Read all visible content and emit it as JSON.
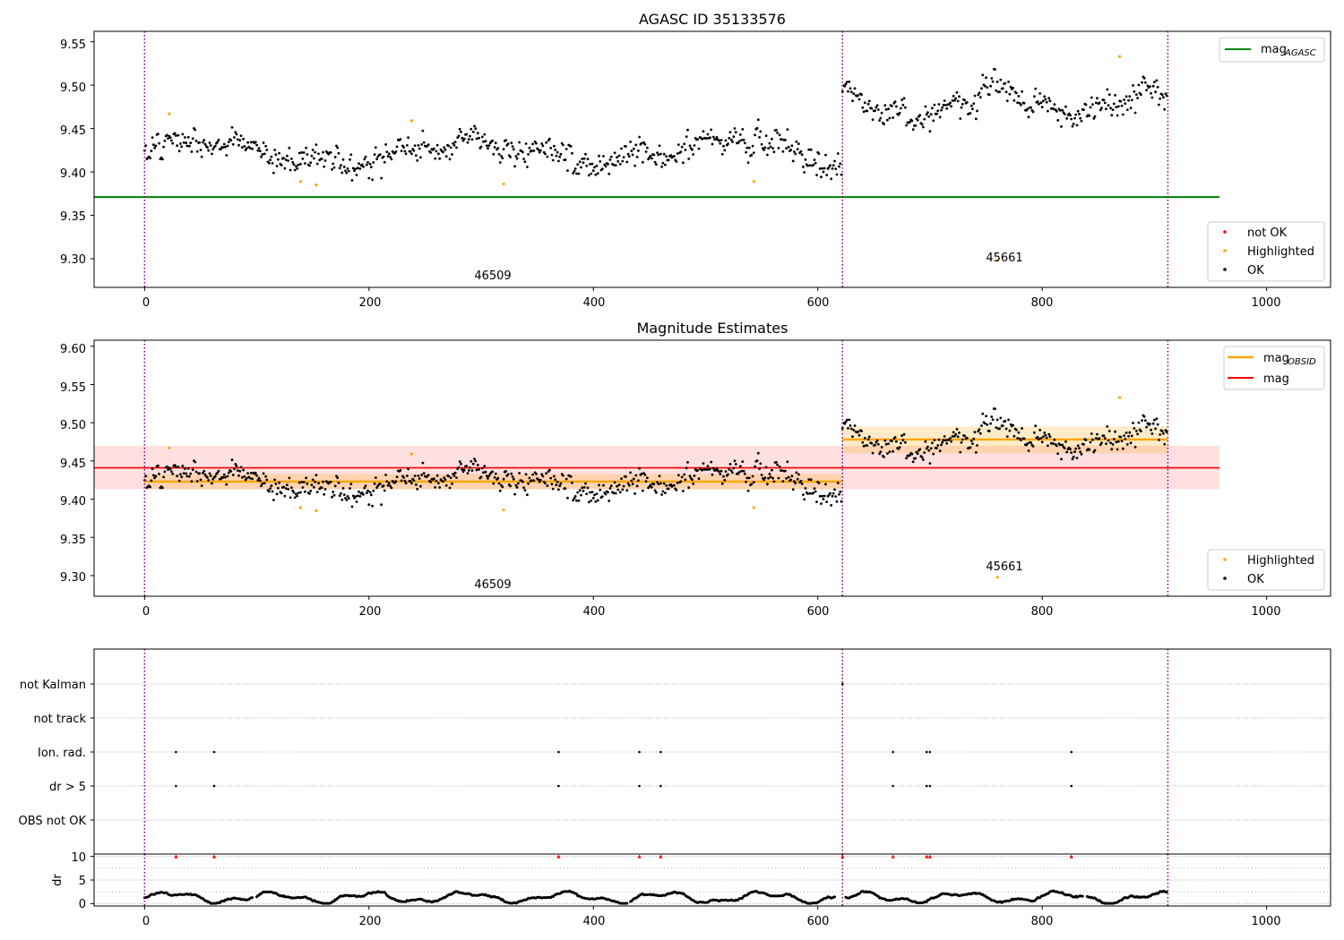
{
  "colors": {
    "ok": "#000000",
    "highlighted": "#ffa500",
    "not_ok": "#ff0000",
    "mag_agasc": "#008000",
    "mag_obsid": "#ffa500",
    "mag": "#ff0000",
    "obs_boundary": "#800080",
    "grid": "#b0b0b0"
  },
  "chart_data": [
    {
      "type": "scatter",
      "title": "AGASC ID 35133576",
      "xlabel": "",
      "ylabel": "",
      "xlim": [
        -45,
        1057
      ],
      "ylim": [
        9.267,
        9.562
      ],
      "xticks": [
        "0",
        "200",
        "400",
        "600",
        "800",
        "1000"
      ],
      "yticks": [
        "9.30",
        "9.35",
        "9.40",
        "9.45",
        "9.50",
        "9.55"
      ],
      "grid": false,
      "obs_boundaries": [
        0,
        622,
        912
      ],
      "obs_labels": [
        {
          "text": "46509",
          "x": 310,
          "y": 9.277
        },
        {
          "text": "45661",
          "x": 766,
          "y": 9.298
        }
      ],
      "reference_lines": [
        {
          "name": "mag_AGASC",
          "y": 9.371,
          "x_range": [
            -45,
            958
          ]
        }
      ],
      "series": [
        {
          "name": "OK",
          "generated": "ok_points"
        },
        {
          "name": "Highlighted",
          "x": [
            22,
            139,
            153,
            238,
            320,
            543,
            760,
            869
          ],
          "y": [
            9.467,
            9.389,
            9.385,
            9.459,
            9.386,
            9.389,
            9.298,
            9.533
          ]
        },
        {
          "name": "not OK",
          "x": [],
          "y": []
        }
      ],
      "legends": [
        {
          "position": "upper-right",
          "entries": [
            {
              "label": "mag",
              "sub": "AGASC",
              "kind": "line",
              "color": "#008000"
            }
          ]
        },
        {
          "position": "lower-right",
          "entries": [
            {
              "label": "not OK",
              "kind": "dot",
              "color": "#ff0000"
            },
            {
              "label": "Highlighted",
              "kind": "dot",
              "color": "#ffa500"
            },
            {
              "label": "OK",
              "kind": "dot",
              "color": "#000000"
            }
          ]
        }
      ]
    },
    {
      "type": "scatter",
      "title": "Magnitude Estimates",
      "xlabel": "",
      "ylabel": "",
      "xlim": [
        -45,
        1057
      ],
      "ylim": [
        9.273,
        9.608
      ],
      "xticks": [
        "0",
        "200",
        "400",
        "600",
        "800",
        "1000"
      ],
      "yticks": [
        "9.30",
        "9.35",
        "9.40",
        "9.45",
        "9.50",
        "9.55",
        "9.60"
      ],
      "grid": false,
      "obs_boundaries": [
        0,
        622,
        912
      ],
      "obs_labels": [
        {
          "text": "46509",
          "x": 310,
          "y": 9.283
        },
        {
          "text": "45661",
          "x": 766,
          "y": 9.307
        }
      ],
      "bands": [
        {
          "name": "mag",
          "y": 9.441,
          "y_low": 9.413,
          "y_high": 9.47,
          "x_range": [
            -45,
            958
          ],
          "color": "#ff0000"
        },
        {
          "name": "mag_OBSID 46509",
          "y": 9.423,
          "y_low": 9.413,
          "y_high": 9.433,
          "x_range": [
            0,
            622
          ],
          "color": "#ffa500"
        },
        {
          "name": "mag_OBSID 45661",
          "y": 9.478,
          "y_low": 9.46,
          "y_high": 9.495,
          "x_range": [
            622,
            912
          ],
          "color": "#ffa500"
        }
      ],
      "series": [
        {
          "name": "OK",
          "generated": "ok_points"
        },
        {
          "name": "Highlighted",
          "x": [
            22,
            139,
            153,
            238,
            320,
            543,
            760,
            869
          ],
          "y": [
            9.467,
            9.389,
            9.385,
            9.459,
            9.386,
            9.389,
            9.298,
            9.533
          ]
        }
      ],
      "legends": [
        {
          "position": "upper-right",
          "entries": [
            {
              "label": "mag",
              "sub": "OBSID",
              "kind": "line",
              "color": "#ffa500"
            },
            {
              "label": "mag",
              "sub": "",
              "kind": "line",
              "color": "#ff0000"
            }
          ]
        },
        {
          "position": "lower-right",
          "entries": [
            {
              "label": "Highlighted",
              "kind": "dot",
              "color": "#ffa500"
            },
            {
              "label": "OK",
              "kind": "dot",
              "color": "#000000"
            }
          ]
        }
      ]
    },
    {
      "type": "scatter",
      "title": "",
      "xlabel": "",
      "ylabel": "",
      "xlim": [
        -45,
        1057
      ],
      "categories": [
        "not Kalman",
        "not track",
        "Ion. rad.",
        "dr > 5",
        "OBS not OK"
      ],
      "grid": true,
      "obs_boundaries": [
        0,
        622,
        912
      ],
      "flag_points": [
        {
          "category": "not Kalman",
          "x": [
            622
          ]
        },
        {
          "category": "not track",
          "x": []
        },
        {
          "category": "Ion. rad.",
          "x": [
            28,
            62,
            369,
            441,
            460,
            667,
            697,
            700,
            826
          ]
        },
        {
          "category": "dr > 5",
          "x": [
            28,
            62,
            369,
            441,
            460,
            667,
            697,
            700,
            826
          ]
        },
        {
          "category": "OBS not OK",
          "x": []
        }
      ]
    },
    {
      "type": "scatter",
      "title": "",
      "xlabel": "",
      "ylabel": "dr",
      "xlim": [
        -45,
        1057
      ],
      "ylim": [
        -0.5,
        10.5
      ],
      "xticks": [
        "0",
        "200",
        "400",
        "600",
        "800",
        "1000"
      ],
      "yticks": [
        "0",
        "5",
        "10"
      ],
      "grid": true,
      "obs_boundaries": [
        0,
        622,
        912
      ],
      "series": [
        {
          "name": "dr",
          "generated": "dr_points"
        },
        {
          "name": "dr > 5 (clipped)",
          "x": [
            28,
            62,
            369,
            441,
            460,
            622,
            667,
            697,
            700,
            826
          ],
          "y": [
            10,
            10,
            10,
            10,
            10,
            10,
            10,
            10,
            10,
            10
          ]
        }
      ]
    }
  ]
}
